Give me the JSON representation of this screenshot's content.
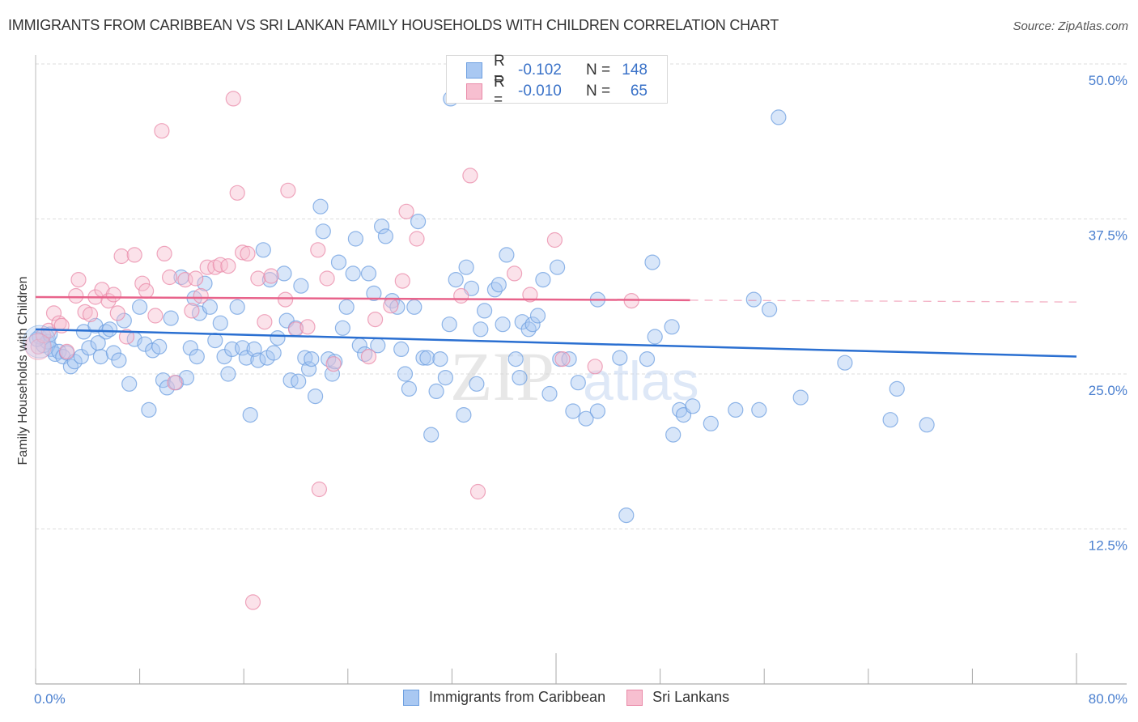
{
  "header": {
    "title": "IMMIGRANTS FROM CARIBBEAN VS SRI LANKAN FAMILY HOUSEHOLDS WITH CHILDREN CORRELATION CHART",
    "source": "Source: ZipAtlas.com"
  },
  "legend": {
    "rows": [
      {
        "r_label": "R =",
        "r_value": "-0.102",
        "n_label": "N =",
        "n_value": "148",
        "color": "#a9c8f2",
        "border": "#6d9fe0"
      },
      {
        "r_label": "R =",
        "r_value": "-0.010",
        "n_label": "N =",
        "n_value": "65",
        "color": "#f7bfd0",
        "border": "#e98aa8"
      }
    ]
  },
  "bottom_legend": [
    {
      "label": "Immigrants from Caribbean",
      "color": "#a9c8f2",
      "border": "#6d9fe0"
    },
    {
      "label": "Sri Lankans",
      "color": "#f7bfd0",
      "border": "#e98aa8"
    }
  ],
  "watermark": {
    "zip": "ZIP",
    "atlas": "atlas"
  },
  "chart_data": {
    "type": "scatter",
    "title": "IMMIGRANTS FROM CARIBBEAN VS SRI LANKAN FAMILY HOUSEHOLDS WITH CHILDREN CORRELATION CHART",
    "xlabel": "",
    "ylabel": "Family Households with Children",
    "xlim": [
      0,
      80
    ],
    "ylim": [
      0,
      52
    ],
    "x_tick_labels": [
      "0.0%",
      "80.0%"
    ],
    "x_ticks_minor": [
      0,
      8,
      16,
      24,
      32,
      40,
      48,
      56,
      64,
      72,
      80
    ],
    "y_ticks": [
      12.5,
      25.0,
      37.5,
      50.0
    ],
    "y_tick_labels": [
      "12.5%",
      "25.0%",
      "37.5%",
      "50.0%"
    ],
    "grid": true,
    "legend_position": "top-center",
    "series": [
      {
        "name": "Immigrants from Caribbean",
        "color": "#6d9fe0",
        "fill": "#a9c8f2",
        "R": -0.102,
        "N": 148,
        "trend": {
          "x0": 0,
          "y0": 28.6,
          "x1": 80,
          "y1": 26.4,
          "solid_until": 80
        },
        "points": [
          [
            0.3,
            28.0
          ],
          [
            0.6,
            27.3
          ],
          [
            0.9,
            27.6
          ],
          [
            1.2,
            27.0
          ],
          [
            1.5,
            26.6
          ],
          [
            1.8,
            26.8
          ],
          [
            2.1,
            26.4
          ],
          [
            2.4,
            26.7
          ],
          [
            2.7,
            25.6
          ],
          [
            3.0,
            26.0
          ],
          [
            3.5,
            26.4
          ],
          [
            3.7,
            28.4
          ],
          [
            4.1,
            27.1
          ],
          [
            4.6,
            28.9
          ],
          [
            5.0,
            26.4
          ],
          [
            5.4,
            28.4
          ],
          [
            5.7,
            28.6
          ],
          [
            6.0,
            26.7
          ],
          [
            6.4,
            26.1
          ],
          [
            6.8,
            29.3
          ],
          [
            7.2,
            24.2
          ],
          [
            7.6,
            27.8
          ],
          [
            8.0,
            30.4
          ],
          [
            8.4,
            27.4
          ],
          [
            8.7,
            22.1
          ],
          [
            9.0,
            26.9
          ],
          [
            9.5,
            27.2
          ],
          [
            9.8,
            24.5
          ],
          [
            10.1,
            23.9
          ],
          [
            10.4,
            29.5
          ],
          [
            10.8,
            24.3
          ],
          [
            11.2,
            32.8
          ],
          [
            11.6,
            24.7
          ],
          [
            11.9,
            27.1
          ],
          [
            12.2,
            31.1
          ],
          [
            12.4,
            26.4
          ],
          [
            12.6,
            29.9
          ],
          [
            13.0,
            32.3
          ],
          [
            13.4,
            30.4
          ],
          [
            13.8,
            27.7
          ],
          [
            14.2,
            29.1
          ],
          [
            14.5,
            26.4
          ],
          [
            14.8,
            25.0
          ],
          [
            15.1,
            27.0
          ],
          [
            15.5,
            30.4
          ],
          [
            15.9,
            27.1
          ],
          [
            16.2,
            26.3
          ],
          [
            16.5,
            21.7
          ],
          [
            16.8,
            27.0
          ],
          [
            17.1,
            26.1
          ],
          [
            17.5,
            35.0
          ],
          [
            17.8,
            26.3
          ],
          [
            18.0,
            32.6
          ],
          [
            18.3,
            26.7
          ],
          [
            18.6,
            27.9
          ],
          [
            19.1,
            33.1
          ],
          [
            19.3,
            29.3
          ],
          [
            19.6,
            24.5
          ],
          [
            20.0,
            28.7
          ],
          [
            20.2,
            24.4
          ],
          [
            20.4,
            32.1
          ],
          [
            20.7,
            26.3
          ],
          [
            21.0,
            25.4
          ],
          [
            21.2,
            26.2
          ],
          [
            21.5,
            23.2
          ],
          [
            21.9,
            38.5
          ],
          [
            22.1,
            36.5
          ],
          [
            22.5,
            26.2
          ],
          [
            22.8,
            25.0
          ],
          [
            23.0,
            26.0
          ],
          [
            23.3,
            34.0
          ],
          [
            23.6,
            28.7
          ],
          [
            23.9,
            30.4
          ],
          [
            24.4,
            33.1
          ],
          [
            24.6,
            35.9
          ],
          [
            24.9,
            27.3
          ],
          [
            25.3,
            26.6
          ],
          [
            25.6,
            33.1
          ],
          [
            26.0,
            31.5
          ],
          [
            26.3,
            27.3
          ],
          [
            26.6,
            36.9
          ],
          [
            26.9,
            36.1
          ],
          [
            27.4,
            30.9
          ],
          [
            27.8,
            30.4
          ],
          [
            28.1,
            27.0
          ],
          [
            28.4,
            25.0
          ],
          [
            28.7,
            23.8
          ],
          [
            29.1,
            30.4
          ],
          [
            29.4,
            37.3
          ],
          [
            29.8,
            26.3
          ],
          [
            30.1,
            26.3
          ],
          [
            30.4,
            20.1
          ],
          [
            30.8,
            23.6
          ],
          [
            31.1,
            26.2
          ],
          [
            31.5,
            24.7
          ],
          [
            31.8,
            29.0
          ],
          [
            31.9,
            47.2
          ],
          [
            32.3,
            32.6
          ],
          [
            32.9,
            21.7
          ],
          [
            33.1,
            33.6
          ],
          [
            33.5,
            31.9
          ],
          [
            33.9,
            24.2
          ],
          [
            34.2,
            28.6
          ],
          [
            34.5,
            30.1
          ],
          [
            35.3,
            31.8
          ],
          [
            35.6,
            32.2
          ],
          [
            35.9,
            29.0
          ],
          [
            36.2,
            34.6
          ],
          [
            36.9,
            26.2
          ],
          [
            37.2,
            24.7
          ],
          [
            37.4,
            29.2
          ],
          [
            37.9,
            28.6
          ],
          [
            38.2,
            29.0
          ],
          [
            38.6,
            29.7
          ],
          [
            39.0,
            32.6
          ],
          [
            39.5,
            23.4
          ],
          [
            40.1,
            33.6
          ],
          [
            40.3,
            26.2
          ],
          [
            41.0,
            26.2
          ],
          [
            41.3,
            22.0
          ],
          [
            41.7,
            24.3
          ],
          [
            42.3,
            21.4
          ],
          [
            43.2,
            22.0
          ],
          [
            43.2,
            31.0
          ],
          [
            44.9,
            26.3
          ],
          [
            45.4,
            13.6
          ],
          [
            47.0,
            26.2
          ],
          [
            47.4,
            34.0
          ],
          [
            47.6,
            28.0
          ],
          [
            48.9,
            28.8
          ],
          [
            49.0,
            20.1
          ],
          [
            49.5,
            22.1
          ],
          [
            49.8,
            21.7
          ],
          [
            50.5,
            22.4
          ],
          [
            51.9,
            21.0
          ],
          [
            53.8,
            22.1
          ],
          [
            55.2,
            31.0
          ],
          [
            55.6,
            22.1
          ],
          [
            56.4,
            30.2
          ],
          [
            57.1,
            45.7
          ],
          [
            58.8,
            23.1
          ],
          [
            62.2,
            25.9
          ],
          [
            65.7,
            21.3
          ],
          [
            66.2,
            23.8
          ],
          [
            68.5,
            20.9
          ],
          [
            0.1,
            27.8
          ],
          [
            1.1,
            28.2
          ],
          [
            4.8,
            27.5
          ]
        ]
      },
      {
        "name": "Sri Lankans",
        "color": "#e98aa8",
        "fill": "#f7bfd0",
        "R": -0.01,
        "N": 65,
        "trend": {
          "x0": 0,
          "y0": 31.2,
          "x1": 80,
          "y1": 30.8,
          "solid_until": 50.3
        },
        "points": [
          [
            0.2,
            27.2
          ],
          [
            0.6,
            28.1
          ],
          [
            1.0,
            28.5
          ],
          [
            1.4,
            29.9
          ],
          [
            1.8,
            29.1
          ],
          [
            2.0,
            28.9
          ],
          [
            2.4,
            26.8
          ],
          [
            3.1,
            31.3
          ],
          [
            3.3,
            32.6
          ],
          [
            3.8,
            30.0
          ],
          [
            4.2,
            29.8
          ],
          [
            4.6,
            31.2
          ],
          [
            5.1,
            31.8
          ],
          [
            5.6,
            30.9
          ],
          [
            6.0,
            31.4
          ],
          [
            6.3,
            29.9
          ],
          [
            6.6,
            34.5
          ],
          [
            7.0,
            28.0
          ],
          [
            7.6,
            34.6
          ],
          [
            8.2,
            32.3
          ],
          [
            8.5,
            31.7
          ],
          [
            9.2,
            29.7
          ],
          [
            9.7,
            44.6
          ],
          [
            9.9,
            34.7
          ],
          [
            10.3,
            32.8
          ],
          [
            10.7,
            24.3
          ],
          [
            11.5,
            32.6
          ],
          [
            12.0,
            30.1
          ],
          [
            12.3,
            32.7
          ],
          [
            12.7,
            31.3
          ],
          [
            13.2,
            33.6
          ],
          [
            13.8,
            33.6
          ],
          [
            14.2,
            33.8
          ],
          [
            14.8,
            33.7
          ],
          [
            15.2,
            47.2
          ],
          [
            15.5,
            39.6
          ],
          [
            15.9,
            34.8
          ],
          [
            16.3,
            34.7
          ],
          [
            16.7,
            6.6
          ],
          [
            17.1,
            32.7
          ],
          [
            17.6,
            29.2
          ],
          [
            18.1,
            32.9
          ],
          [
            19.2,
            31.0
          ],
          [
            19.4,
            39.8
          ],
          [
            20.0,
            28.6
          ],
          [
            20.9,
            28.8
          ],
          [
            21.7,
            35.0
          ],
          [
            21.8,
            15.7
          ],
          [
            22.4,
            32.7
          ],
          [
            22.9,
            25.8
          ],
          [
            25.6,
            26.4
          ],
          [
            26.1,
            29.4
          ],
          [
            27.3,
            30.5
          ],
          [
            28.2,
            32.5
          ],
          [
            28.5,
            38.1
          ],
          [
            29.3,
            35.9
          ],
          [
            32.7,
            31.3
          ],
          [
            33.4,
            41.0
          ],
          [
            34.0,
            15.5
          ],
          [
            36.8,
            33.1
          ],
          [
            38.0,
            31.4
          ],
          [
            39.9,
            35.8
          ],
          [
            40.5,
            26.2
          ],
          [
            43.0,
            25.6
          ],
          [
            45.8,
            30.9
          ]
        ]
      }
    ]
  }
}
